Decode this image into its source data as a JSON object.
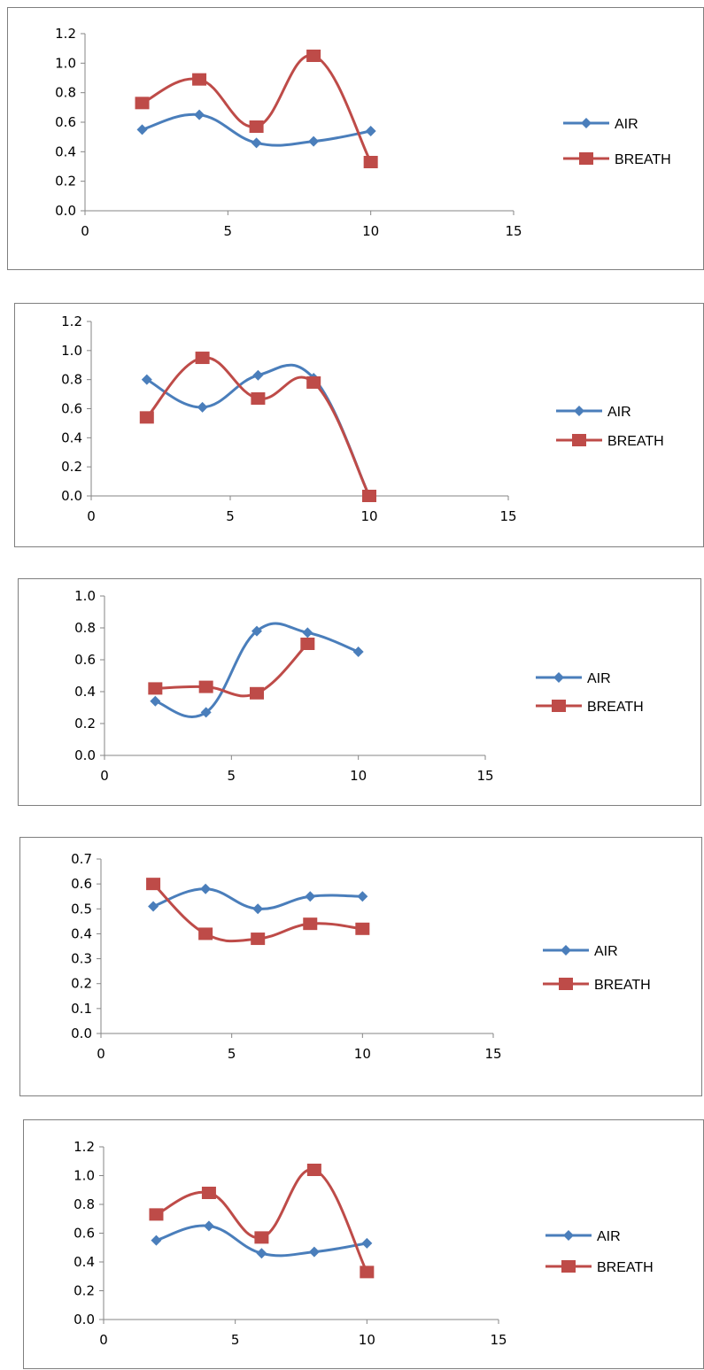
{
  "colors": {
    "air": "#4a7ebb",
    "breath": "#be4b48",
    "axis": "#868686"
  },
  "chart_data": [
    {
      "type": "line",
      "xlim": [
        0,
        15
      ],
      "ylim": [
        0,
        1.2
      ],
      "xticks": [
        "0",
        "5",
        "10",
        "15"
      ],
      "yticks": [
        "0.0",
        "0.2",
        "0.4",
        "0.6",
        "0.8",
        "1.0",
        "1.2"
      ],
      "grid": false,
      "legend": "right",
      "smooth": true,
      "series": [
        {
          "name": "AIR",
          "marker": "diamond",
          "x": [
            2,
            4,
            6,
            8,
            10
          ],
          "y": [
            0.55,
            0.65,
            0.46,
            0.47,
            0.54
          ]
        },
        {
          "name": "BREATH",
          "marker": "square",
          "x": [
            2,
            4,
            6,
            8,
            10
          ],
          "y": [
            0.73,
            0.89,
            0.57,
            1.05,
            0.33
          ]
        }
      ]
    },
    {
      "type": "line",
      "xlim": [
        0,
        15
      ],
      "ylim": [
        0,
        1.2
      ],
      "xticks": [
        "0",
        "5",
        "10",
        "15"
      ],
      "yticks": [
        "0.0",
        "0.2",
        "0.4",
        "0.6",
        "0.8",
        "1.0",
        "1.2"
      ],
      "grid": false,
      "legend": "right",
      "smooth": true,
      "series": [
        {
          "name": "AIR",
          "marker": "diamond",
          "x": [
            2,
            4,
            6,
            8,
            10
          ],
          "y": [
            0.8,
            0.61,
            0.83,
            0.81,
            0.0
          ]
        },
        {
          "name": "BREATH",
          "marker": "square",
          "x": [
            2,
            4,
            6,
            8,
            10
          ],
          "y": [
            0.54,
            0.95,
            0.67,
            0.78,
            0.0
          ]
        }
      ]
    },
    {
      "type": "line",
      "xlim": [
        0,
        15
      ],
      "ylim": [
        0,
        1.0
      ],
      "xticks": [
        "0",
        "5",
        "10",
        "15"
      ],
      "yticks": [
        "0.0",
        "0.2",
        "0.4",
        "0.6",
        "0.8",
        "1.0"
      ],
      "grid": false,
      "legend": "right",
      "smooth": true,
      "series": [
        {
          "name": "AIR",
          "marker": "diamond",
          "x": [
            2,
            4,
            6,
            8,
            10
          ],
          "y": [
            0.34,
            0.27,
            0.78,
            0.77,
            0.65
          ]
        },
        {
          "name": "BREATH",
          "marker": "square",
          "x": [
            2,
            4,
            6,
            8
          ],
          "y": [
            0.42,
            0.43,
            0.39,
            0.7
          ]
        }
      ]
    },
    {
      "type": "line",
      "xlim": [
        0,
        15
      ],
      "ylim": [
        0,
        0.7
      ],
      "xticks": [
        "0",
        "5",
        "10",
        "15"
      ],
      "yticks": [
        "0.0",
        "0.1",
        "0.2",
        "0.3",
        "0.4",
        "0.5",
        "0.6",
        "0.7"
      ],
      "grid": false,
      "legend": "right",
      "smooth": true,
      "series": [
        {
          "name": "AIR",
          "marker": "diamond",
          "x": [
            2,
            4,
            6,
            8,
            10
          ],
          "y": [
            0.51,
            0.58,
            0.5,
            0.55,
            0.55
          ]
        },
        {
          "name": "BREATH",
          "marker": "square",
          "x": [
            2,
            4,
            6,
            8,
            10
          ],
          "y": [
            0.6,
            0.4,
            0.38,
            0.44,
            0.42
          ]
        }
      ]
    },
    {
      "type": "line",
      "xlim": [
        0,
        15
      ],
      "ylim": [
        0,
        1.2
      ],
      "xticks": [
        "0",
        "5",
        "10",
        "15"
      ],
      "yticks": [
        "0.0",
        "0.2",
        "0.4",
        "0.6",
        "0.8",
        "1.0",
        "1.2"
      ],
      "grid": false,
      "legend": "right",
      "smooth": true,
      "series": [
        {
          "name": "AIR",
          "marker": "diamond",
          "x": [
            2,
            4,
            6,
            8,
            10
          ],
          "y": [
            0.55,
            0.65,
            0.46,
            0.47,
            0.53
          ]
        },
        {
          "name": "BREATH",
          "marker": "square",
          "x": [
            2,
            4,
            6,
            8,
            10
          ],
          "y": [
            0.73,
            0.88,
            0.57,
            1.04,
            0.33
          ]
        }
      ]
    }
  ]
}
